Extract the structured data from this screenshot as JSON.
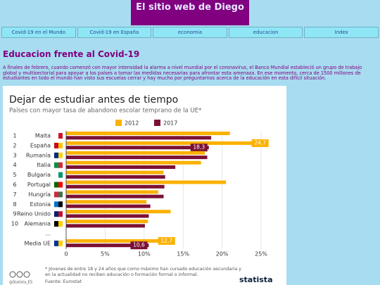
{
  "header": {
    "title": "El sitio web de Diego"
  },
  "nav": [
    "Covid-19 en el Mundo",
    "Covid-19 en España",
    "economia",
    "educacion",
    "Index"
  ],
  "article": {
    "title": "Educacion frente al Covid-19",
    "text": "A finales de febrero, cuando comenzó con mayor intensidad la alarma a nivel mundial por el coronavirus, el Banco Mundial estableció un grupo de trabajo global y multisectorial para apoyar a los países a tomar las medidas necesarias para afrontar esta amenaza. En ese momento, cerca de 1500 millones de estudiantes en todo el mundo han visto sus escuelas cerrar y hay mucho por preguntarnos acerca de la educación en esta difícil situación."
  },
  "chart_data": {
    "type": "bar",
    "orientation": "horizontal",
    "title": "Dejar de estudiar antes de tiempo",
    "subtitle": "Países con mayor tasa de abandono escolar temprano de la UE*",
    "ranks": [
      1,
      2,
      3,
      4,
      5,
      6,
      7,
      8,
      9,
      10
    ],
    "categories": [
      "Malta",
      "España",
      "Rumanía",
      "Italia",
      "Bulgaria",
      "Portugal",
      "Hungría",
      "Estonia",
      "Reino Unido",
      "Alemania",
      "...",
      "Media UE"
    ],
    "series": [
      {
        "name": "2012",
        "color": "#fbb100",
        "values": [
          21.0,
          24.7,
          17.8,
          17.3,
          12.5,
          20.5,
          11.8,
          10.3,
          13.4,
          10.5,
          null,
          12.7
        ],
        "value_labels": [
          null,
          "24,7",
          null,
          null,
          null,
          null,
          null,
          null,
          null,
          null,
          null,
          "12,7"
        ]
      },
      {
        "name": "2017",
        "color": "#7b1034",
        "values": [
          18.6,
          18.3,
          18.1,
          14.0,
          12.7,
          12.6,
          12.5,
          10.8,
          10.6,
          10.1,
          null,
          10.6
        ],
        "value_labels": [
          null,
          "18,3",
          null,
          null,
          null,
          null,
          null,
          null,
          null,
          null,
          null,
          "10,6"
        ]
      }
    ],
    "xlim": [
      0,
      25
    ],
    "xticks": [
      0,
      {
        "value": 5,
        "label": "5%"
      },
      {
        "value": 10,
        "label": "10%"
      },
      {
        "value": 15,
        "label": "15%"
      },
      {
        "value": 20,
        "label": "20%"
      },
      {
        "value": 25,
        "label": "25%"
      }
    ],
    "grid": true,
    "note": "* Jóvenes de entre 18 y 24 años que como máximo han cursado educación secundaria y en la actualidad no reciben educación o formación formal o informal.",
    "source": "Fuente: Eurostat",
    "credit": "@Statista_ES",
    "brand": "statista"
  }
}
